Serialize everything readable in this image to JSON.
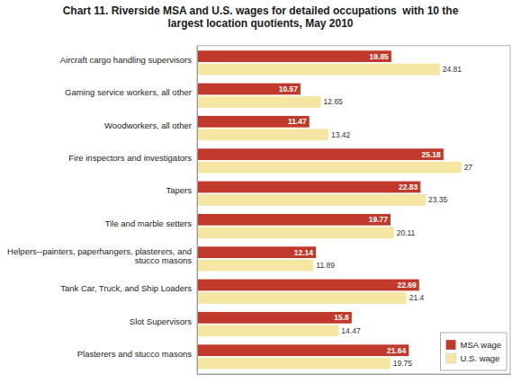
{
  "chart_data": {
    "type": "bar",
    "orientation": "horizontal",
    "title": "Chart 11. Riverside MSA and U.S. wages for detailed occupations  with 10 the\nlargest location quotients, May 2010",
    "categories": [
      "Aircraft cargo handling supervisors",
      "Gaming service workers, all other",
      "Woodworkers, all other",
      "Fire inspectors and investigators",
      "Tapers",
      "Tile and marble setters",
      "Helpers--painters, paperhangers, plasterers, and\nstucco masons",
      "Tank Car, Truck, and Ship Loaders",
      "Slot Supervisors",
      "Plasterers and stucco masons"
    ],
    "series": [
      {
        "name": "MSA wage",
        "color": "#c0392b",
        "values": [
          19.85,
          10.57,
          11.47,
          25.18,
          22.83,
          19.77,
          12.14,
          22.69,
          15.8,
          21.64
        ]
      },
      {
        "name": "U.S. wage",
        "color": "#f5e6a3",
        "values": [
          24.81,
          12.65,
          13.42,
          27,
          23.35,
          20.11,
          11.89,
          21.4,
          14.47,
          19.75
        ]
      }
    ],
    "xlim": [
      0,
      32
    ],
    "tick_labels": "y",
    "data_labels": true,
    "legend": "lower right",
    "grid": false
  }
}
